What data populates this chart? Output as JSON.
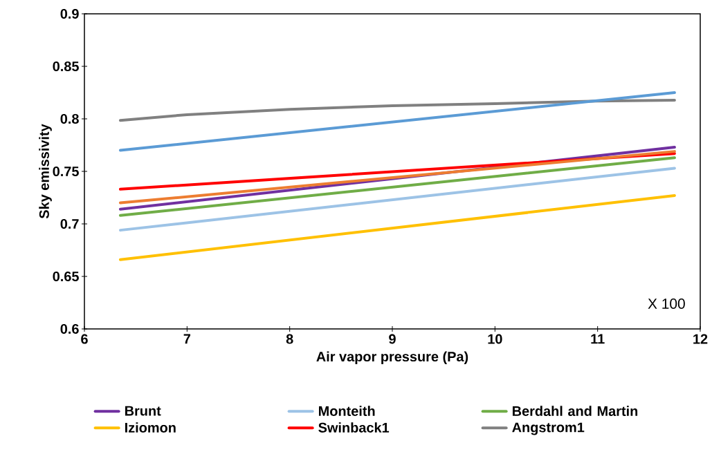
{
  "chart_data": {
    "type": "line",
    "xlabel": "Air vapor pressure (Pa)",
    "ylabel": "Sky emissivity",
    "xlim": [
      6,
      12
    ],
    "ylim": [
      0.6,
      0.9
    ],
    "xticks": [
      6,
      7,
      8,
      9,
      10,
      11,
      12
    ],
    "yticks": [
      0.6,
      0.65,
      0.7,
      0.75,
      0.8,
      0.85,
      0.9
    ],
    "grid": false,
    "legend": "bottom",
    "marker": "none",
    "line_style": "solid",
    "annotations": [
      "X 100"
    ],
    "x": [
      6.35,
      11.75
    ],
    "series": [
      {
        "name": "Brunt",
        "color": "#7030a0",
        "values": [
          0.714,
          0.773
        ]
      },
      {
        "name": "Monteith",
        "color": "#9dc3e6",
        "values": [
          0.694,
          0.753
        ]
      },
      {
        "name": "Berdahl and Martin",
        "color": "#70ad47",
        "values": [
          0.708,
          0.763
        ]
      },
      {
        "name": "Iziomon",
        "color": "#ffc000",
        "values": [
          0.666,
          0.727
        ]
      },
      {
        "name": "Swinback1",
        "color": "#ff0000",
        "values": [
          0.733,
          0.767
        ]
      },
      {
        "name": "Angstrom1",
        "color": "#808080",
        "x": [
          6.35,
          7,
          8,
          9,
          10,
          11,
          11.75
        ],
        "values": [
          0.7985,
          0.804,
          0.809,
          0.8125,
          0.8145,
          0.817,
          0.8178
        ]
      },
      {
        "color": "#5b9bd5",
        "values": [
          0.77,
          0.825
        ]
      },
      {
        "color": "#ed7d31",
        "values": [
          0.72,
          0.769
        ]
      }
    ]
  }
}
